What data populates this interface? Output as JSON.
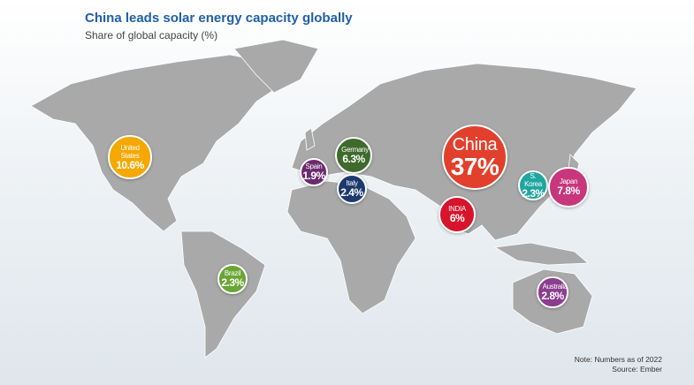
{
  "chart_data": {
    "type": "bubble",
    "title": "China leads solar energy capacity globally",
    "subtitle": "Share of global capacity (%)",
    "categories": [
      "United States",
      "Spain",
      "Germany",
      "Italy",
      "China",
      "INDIA",
      "S. Korea",
      "Japan",
      "Brazil",
      "Australia"
    ],
    "values": [
      10.6,
      1.9,
      6.3,
      2.4,
      37,
      6,
      2.3,
      7.8,
      2.3,
      2.8
    ],
    "value_labels": [
      "10.6%",
      "1.9%",
      "6.3%",
      "2.4%",
      "37%",
      "6%",
      "2.3%",
      "7.8%",
      "2.3%",
      "2.8%"
    ],
    "colors": [
      "#f5a800",
      "#6b2a6e",
      "#3f6a2c",
      "#1c3a6e",
      "#e2402c",
      "#d7142b",
      "#20a6a0",
      "#c8367c",
      "#6aa634",
      "#8b3d90"
    ],
    "notes": [
      "Note: Numbers as of 2022",
      "Source: Ember"
    ]
  }
}
